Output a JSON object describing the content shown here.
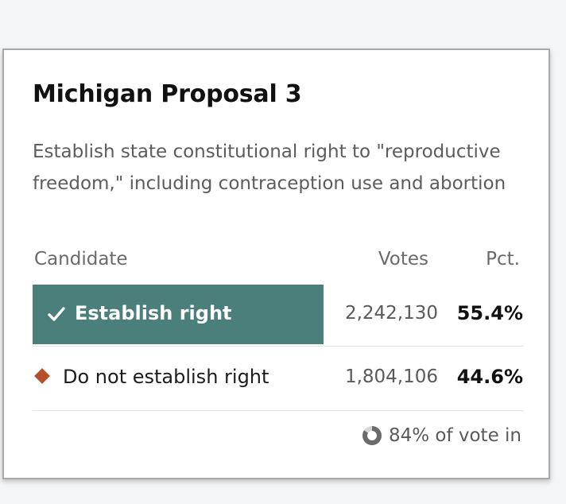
{
  "race": {
    "title": "Michigan Proposal 3",
    "description": "Establish state constitutional right to \"reproductive freedom,\" including contraception use and abortion"
  },
  "table": {
    "headers": {
      "candidate": "Candidate",
      "votes": "Votes",
      "pct": "Pct."
    },
    "rows": [
      {
        "label": "Establish right",
        "votes": "2,242,130",
        "pct": "55.4%",
        "winner": true,
        "color": "#4a7f7b",
        "icon": "checkmark-icon"
      },
      {
        "label": "Do not establish right",
        "votes": "1,804,106",
        "pct": "44.6%",
        "winner": false,
        "color": "#b5502c",
        "icon": "diamond-icon"
      }
    ]
  },
  "reporting": {
    "text": "84% of vote in",
    "fraction": 0.84,
    "icon": "donut-progress-icon"
  }
}
